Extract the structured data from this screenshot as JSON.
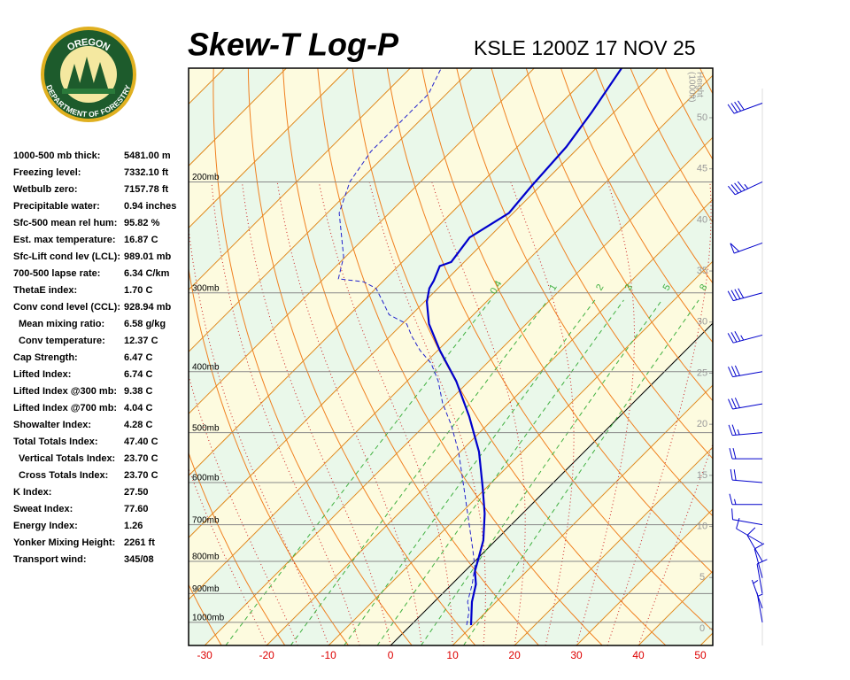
{
  "logo": {
    "top": "OREGON",
    "bottom": "DEPARTMENT OF FORESTRY"
  },
  "stats": [
    {
      "label": "1000-500 mb thick:",
      "value": "5481.00 m"
    },
    {
      "label": "Freezing level:",
      "value": "7332.10 ft"
    },
    {
      "label": "Wetbulb zero:",
      "value": "7157.78 ft"
    },
    {
      "label": "Precipitable water:",
      "value": "0.94 inches"
    },
    {
      "label": "Sfc-500 mean rel hum:",
      "value": "95.82 %"
    },
    {
      "label": "Est. max temperature:",
      "value": "16.87 C"
    },
    {
      "label": "Sfc-Lift cond lev (LCL):",
      "value": "989.01 mb"
    },
    {
      "label": "700-500 lapse rate:",
      "value": "6.34 C/km"
    },
    {
      "label": "ThetaE index:",
      "value": "1.70 C"
    },
    {
      "label": "Conv cond level (CCL):",
      "value": "928.94 mb"
    },
    {
      "label": "Mean mixing ratio:",
      "value": "6.58 g/kg",
      "indent": true
    },
    {
      "label": "Conv temperature:",
      "value": "12.37 C",
      "indent": true
    },
    {
      "label": "Cap Strength:",
      "value": "6.47 C"
    },
    {
      "label": "Lifted Index:",
      "value": "6.74 C"
    },
    {
      "label": "Lifted Index @300 mb:",
      "value": "9.38 C"
    },
    {
      "label": "Lifted Index @700 mb:",
      "value": "4.04 C"
    },
    {
      "label": "Showalter Index:",
      "value": "4.28 C"
    },
    {
      "label": "Total Totals Index:",
      "value": "47.40 C"
    },
    {
      "label": "Vertical Totals Index:",
      "value": "23.70 C",
      "indent": true
    },
    {
      "label": "Cross Totals Index:",
      "value": "23.70 C",
      "indent": true
    },
    {
      "label": "K Index:",
      "value": "27.50"
    },
    {
      "label": "Sweat Index:",
      "value": "77.60"
    },
    {
      "label": "Energy Index:",
      "value": "1.26"
    },
    {
      "label": "Yonker Mixing Height:",
      "value": "2261 ft"
    },
    {
      "label": "Transport wind:",
      "value": "345/08"
    }
  ],
  "chart_data": {
    "type": "skewt",
    "title": "Skew-T Log-P",
    "subtitle": "KSLE 1200Z 17 NOV 25",
    "xlim": [
      -32.6,
      52
    ],
    "xticks": [
      -30,
      -20,
      -10,
      0,
      10,
      20,
      30,
      40,
      50
    ],
    "ylim": [
      1088,
      132
    ],
    "log_y": true,
    "yticks": [
      {
        "value": 1000,
        "label": "1000mb"
      },
      {
        "value": 900,
        "label": "900mb"
      },
      {
        "value": 800,
        "label": "800mb"
      },
      {
        "value": 700,
        "label": "700mb"
      },
      {
        "value": 600,
        "label": "600mb"
      },
      {
        "value": 500,
        "label": "500mb"
      },
      {
        "value": 400,
        "label": "400mb"
      },
      {
        "value": 300,
        "label": "300mb"
      },
      {
        "value": 200,
        "label": "200mb"
      }
    ],
    "height_label": [
      "Height",
      "(1000ft)"
    ],
    "hlim": [
      -1.65,
      54.85
    ],
    "hticks": [
      0,
      5,
      10,
      15,
      20,
      25,
      30,
      35,
      40,
      45,
      50
    ],
    "mixing_ratios": [
      0.4,
      1,
      2,
      3,
      5,
      8
    ],
    "series": [
      {
        "color": "#0000cc",
        "style": "solid",
        "pressure": [
          1010,
          928,
          870,
          829,
          798,
          741,
          672,
          610,
          536,
          471,
          414,
          370,
          336,
          310,
          295,
          287,
          272,
          268,
          245,
          224,
          203,
          176,
          155,
          132
        ],
        "temperature": [
          9.7,
          6.1,
          3.9,
          1.6,
          0.4,
          -2.0,
          -6.1,
          -10.7,
          -17.0,
          -24.3,
          -32.1,
          -39.7,
          -45.7,
          -49.6,
          -51.4,
          -51.9,
          -53.3,
          -52.1,
          -53.1,
          -50.7,
          -51.4,
          -52.1,
          -53.6,
          -55.9
        ]
      },
      {
        "color": "#2222cc",
        "style": "dashed",
        "pressure": [
          1010,
          959,
          928,
          870,
          816,
          765,
          630,
          536,
          487,
          449,
          414,
          388,
          370,
          352,
          336,
          325,
          310,
          295,
          288,
          285,
          263,
          224,
          200,
          179,
          162,
          145,
          132
        ],
        "temperature": [
          9.0,
          7.1,
          5.4,
          3.3,
          0.9,
          -2.3,
          -12.1,
          -20.3,
          -25.7,
          -30.7,
          -35.0,
          -39.0,
          -42.9,
          -46.4,
          -49.3,
          -53.6,
          -56.7,
          -60.0,
          -63.1,
          -67.6,
          -70.3,
          -78.1,
          -81.4,
          -82.9,
          -82.9,
          -82.9,
          -85.0
        ]
      }
    ],
    "winds": [
      {
        "pressure": 1000,
        "direction": 350,
        "speed": 5
      },
      {
        "pressure": 950,
        "direction": 340,
        "speed": 8
      },
      {
        "pressure": 900,
        "direction": 350,
        "speed": 10
      },
      {
        "pressure": 850,
        "direction": 345,
        "speed": 10
      },
      {
        "pressure": 800,
        "direction": 330,
        "speed": 10
      },
      {
        "pressure": 750,
        "direction": 300,
        "speed": 10
      },
      {
        "pressure": 700,
        "direction": 280,
        "speed": 10
      },
      {
        "pressure": 650,
        "direction": 270,
        "speed": 15
      },
      {
        "pressure": 600,
        "direction": 275,
        "speed": 20
      },
      {
        "pressure": 550,
        "direction": 270,
        "speed": 20
      },
      {
        "pressure": 500,
        "direction": 265,
        "speed": 25
      },
      {
        "pressure": 450,
        "direction": 260,
        "speed": 30
      },
      {
        "pressure": 400,
        "direction": 260,
        "speed": 30
      },
      {
        "pressure": 350,
        "direction": 255,
        "speed": 35
      },
      {
        "pressure": 300,
        "direction": 255,
        "speed": 40
      },
      {
        "pressure": 250,
        "direction": 250,
        "speed": 50
      },
      {
        "pressure": 200,
        "direction": 245,
        "speed": 45
      },
      {
        "pressure": 150,
        "direction": 250,
        "speed": 40
      }
    ],
    "wind_color": "#0000cc"
  }
}
